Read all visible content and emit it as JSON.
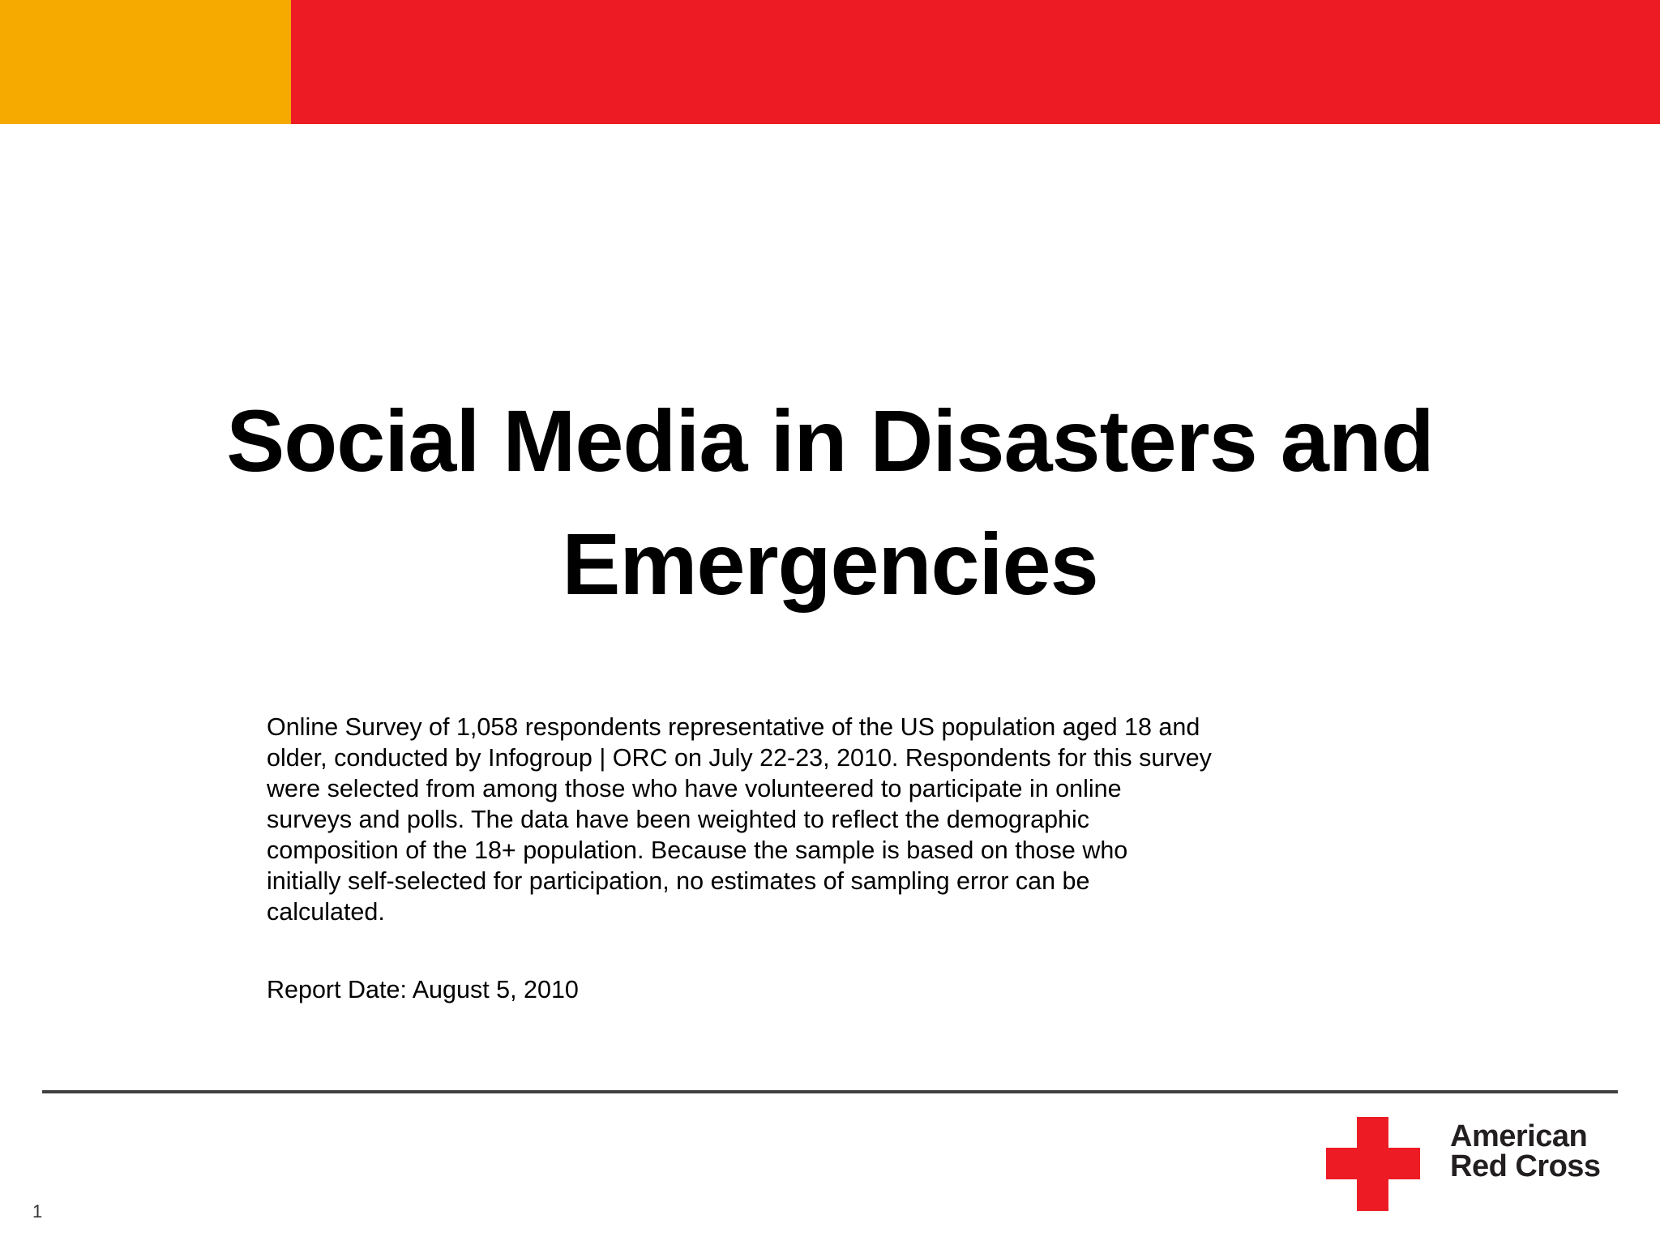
{
  "colors": {
    "orange": "#F6AA00",
    "red": "#ED1C24",
    "rule": "#404040"
  },
  "title_lines": [
    "Social Media in Disasters and",
    "Emergencies"
  ],
  "description_lines": [
    "Online Survey of 1,058 respondents representative of the US population aged 18 and",
    "older, conducted by Infogroup | ORC on July 22-23, 2010. Respondents for this survey",
    "were selected from among those who have volunteered to participate in online",
    "surveys and polls. The data have been weighted to reflect the demographic",
    "composition of the 18+ population.  Because the sample is based on those who",
    "initially self-selected for participation, no estimates of sampling error can be",
    "calculated."
  ],
  "report_date": "Report Date:  August 5, 2010",
  "logo": {
    "line1": "American",
    "line2": "Red Cross",
    "icon": "red-cross-icon"
  },
  "page_number": "1"
}
